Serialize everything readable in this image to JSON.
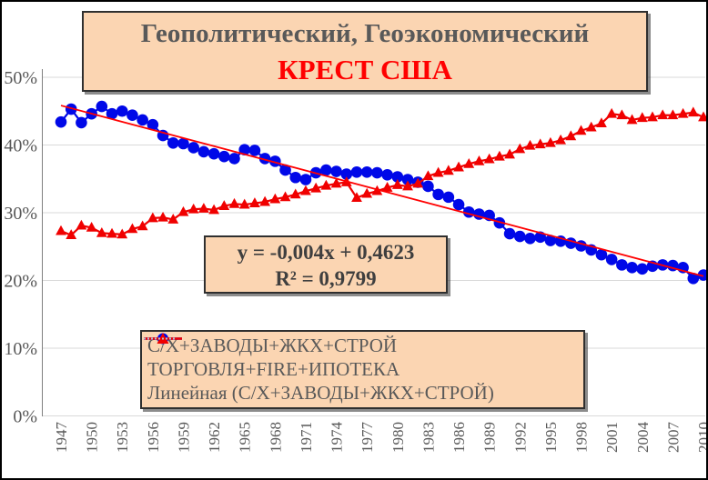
{
  "title": {
    "line1": "Геополитический, Геоэкономический",
    "line2": "КРЕСТ США",
    "line1_color": "#595959",
    "line2_color": "#ff0000",
    "box_fill": "#fbd5b2",
    "box_border": "#2f2f2f"
  },
  "equation": {
    "line1": "y = -0,004x + 0,4623",
    "line2": "R² = 0,9799"
  },
  "legend": {
    "items": [
      {
        "label": "С/Х+ЗАВОДЫ+ЖКХ+СТРОЙ",
        "marker": "circle",
        "color": "#0008e8"
      },
      {
        "label": "ТОРГОВЛЯ+FIRE+ИПОТЕКА",
        "marker": "triangle",
        "color": "#f00000"
      },
      {
        "label": "Линейная (С/Х+ЗАВОДЫ+ЖКХ+СТРОЙ)",
        "marker": "dotted-line",
        "color": "#b9c0cc"
      }
    ]
  },
  "chart_data": {
    "type": "line",
    "title": "Геополитический, Геоэкономический КРЕСТ США",
    "xlabel": "",
    "ylabel": "",
    "ylim": [
      0,
      50
    ],
    "grid": "horizontal",
    "legend_position": "bottom-left-box",
    "y_tick_labels": [
      "0%",
      "10%",
      "20%",
      "30%",
      "40%",
      "50%"
    ],
    "x_tick_labels": [
      "1947",
      "1950",
      "1953",
      "1956",
      "1959",
      "1962",
      "1965",
      "1968",
      "1971",
      "1974",
      "1977",
      "1980",
      "1983",
      "1986",
      "1989",
      "1992",
      "1995",
      "1998",
      "2001",
      "2004",
      "2007",
      "2010"
    ],
    "x": [
      1947,
      1948,
      1949,
      1950,
      1951,
      1952,
      1953,
      1954,
      1955,
      1956,
      1957,
      1958,
      1959,
      1960,
      1961,
      1962,
      1963,
      1964,
      1965,
      1966,
      1967,
      1968,
      1969,
      1970,
      1971,
      1972,
      1973,
      1974,
      1975,
      1976,
      1977,
      1978,
      1979,
      1980,
      1981,
      1982,
      1983,
      1984,
      1985,
      1986,
      1987,
      1988,
      1989,
      1990,
      1991,
      1992,
      1993,
      1994,
      1995,
      1996,
      1997,
      1998,
      1999,
      2000,
      2001,
      2002,
      2003,
      2004,
      2005,
      2006,
      2007,
      2008,
      2009,
      2010
    ],
    "series": [
      {
        "name": "С/Х+ЗАВОДЫ+ЖКХ+СТРОЙ",
        "color": "#0008e8",
        "marker": "circle",
        "values": [
          43.4,
          45.3,
          43.3,
          44.6,
          45.7,
          44.6,
          45.0,
          44.4,
          43.7,
          43.0,
          41.4,
          40.3,
          40.2,
          39.6,
          39.0,
          38.7,
          38.3,
          38.0,
          39.3,
          39.2,
          38.0,
          37.6,
          36.3,
          35.2,
          34.9,
          35.9,
          36.3,
          36.1,
          35.7,
          36.0,
          36.0,
          35.9,
          35.6,
          35.3,
          34.9,
          34.5,
          33.9,
          32.7,
          32.3,
          31.2,
          30.1,
          29.8,
          29.6,
          28.5,
          26.9,
          26.5,
          26.2,
          26.4,
          25.9,
          25.8,
          25.5,
          25.1,
          24.5,
          23.8,
          23.1,
          22.3,
          21.9,
          21.7,
          22.1,
          22.3,
          22.2,
          21.9,
          20.3,
          20.8
        ]
      },
      {
        "name": "ТОРГОВЛЯ+FIRE+ИПОТЕКА",
        "color": "#f00000",
        "marker": "triangle",
        "values": [
          27.3,
          26.7,
          28.1,
          27.8,
          27.0,
          26.9,
          26.8,
          27.6,
          28.0,
          29.2,
          29.3,
          29.0,
          30.1,
          30.5,
          30.6,
          30.4,
          31.0,
          31.3,
          31.2,
          31.4,
          31.6,
          32.0,
          32.3,
          32.7,
          33.2,
          33.6,
          34.0,
          34.3,
          34.5,
          32.2,
          32.8,
          33.2,
          33.7,
          34.1,
          33.9,
          34.3,
          35.4,
          35.9,
          36.2,
          36.7,
          37.2,
          37.6,
          37.9,
          38.3,
          38.6,
          39.4,
          39.9,
          40.1,
          40.3,
          40.7,
          41.3,
          42.1,
          42.6,
          43.2,
          44.6,
          44.4,
          43.7,
          44.0,
          44.1,
          44.4,
          44.4,
          44.6,
          44.8,
          44.1
        ]
      }
    ],
    "trendline": {
      "applies_to": "С/Х+ЗАВОДЫ+ЖКХ+СТРОЙ",
      "equation": "y = -0,004x + 0,4623",
      "r_squared": "R² = 0,9799",
      "slope": -0.004,
      "intercept": 0.4623,
      "color": "#ff0000"
    },
    "colors": {
      "gridline": "#d9d9d9",
      "axis": "#7f7f7f",
      "tick_label": "#595959",
      "background": "#ffffff"
    }
  }
}
